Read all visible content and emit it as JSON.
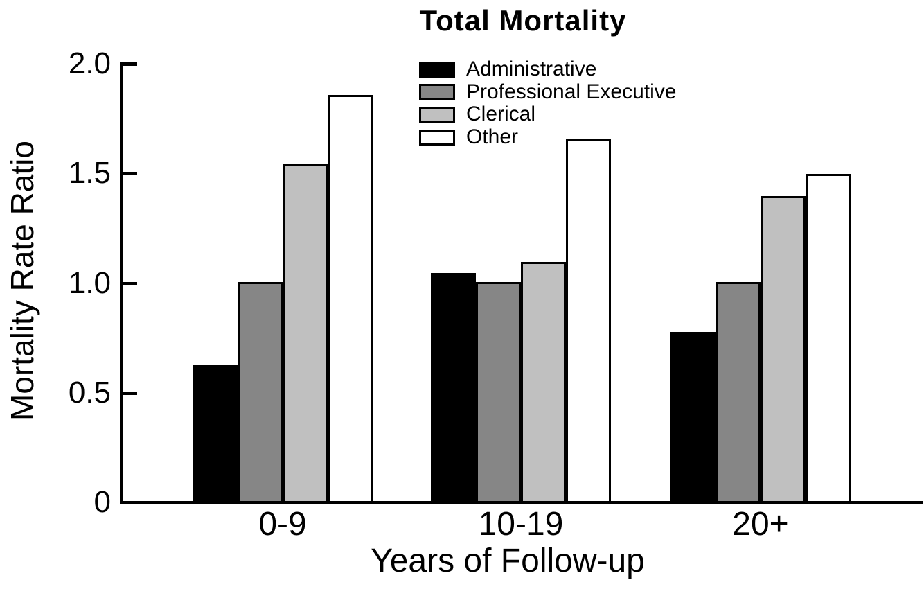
{
  "chart_data": {
    "type": "bar",
    "title": "Total Mortality",
    "xlabel": "Years of Follow-up",
    "ylabel": "Mortality Rate Ratio",
    "categories": [
      "0-9",
      "10-19",
      "20+"
    ],
    "series": [
      {
        "name": "Administrative",
        "color": "#000000",
        "values": [
          0.62,
          1.04,
          0.77
        ]
      },
      {
        "name": "Professional Executive",
        "color": "#868686",
        "values": [
          1.0,
          1.0,
          1.0
        ]
      },
      {
        "name": "Clerical",
        "color": "#c0c0c0",
        "values": [
          1.54,
          1.09,
          1.39
        ]
      },
      {
        "name": "Other",
        "color": "#ffffff",
        "values": [
          1.85,
          1.65,
          1.49
        ]
      }
    ],
    "ylim": [
      0,
      2.0
    ],
    "yticks": [
      0,
      0.5,
      1.0,
      1.5,
      2.0
    ],
    "ytick_labels": [
      "0",
      "0.5",
      "1.0",
      "1.5",
      "2.0"
    ],
    "grid": false,
    "legend_position": "top-center-inside",
    "axis_color": "#000000",
    "background_color": "#ffffff"
  }
}
